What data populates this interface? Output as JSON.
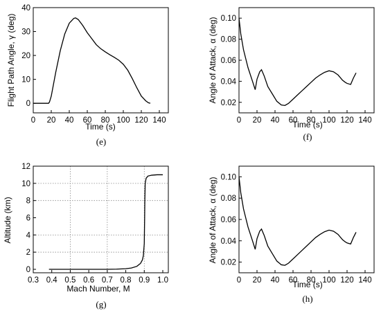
{
  "chart_data": [
    {
      "id": "e",
      "type": "line",
      "caption": "(e)",
      "xlabel": "Time (s)",
      "ylabel": "Flight Path Angle, γ (deg)",
      "xlim": [
        0,
        150
      ],
      "ylim": [
        -4,
        40
      ],
      "xticks": [
        0,
        20,
        40,
        60,
        80,
        100,
        120,
        140
      ],
      "yticks": [
        0,
        10,
        20,
        30,
        40
      ],
      "ytick_labels": [
        "0",
        "10",
        "20",
        "30",
        "40"
      ],
      "grid": false,
      "x": [
        0,
        10,
        17,
        18,
        20,
        25,
        30,
        35,
        40,
        45,
        47,
        50,
        55,
        60,
        65,
        70,
        75,
        80,
        85,
        90,
        95,
        100,
        105,
        110,
        115,
        120,
        125,
        128,
        130
      ],
      "y": [
        0,
        0,
        0,
        0.5,
        3,
        13,
        22,
        29,
        33.5,
        35.5,
        35.7,
        35,
        32.5,
        29.5,
        27,
        24.5,
        22.8,
        21.5,
        20.3,
        19.2,
        18,
        16.3,
        13.8,
        10.3,
        6.5,
        3,
        1,
        0.2,
        0
      ]
    },
    {
      "id": "f",
      "type": "line",
      "caption": "(f)",
      "xlabel": "Time (s)",
      "ylabel": "Angle of Attack, α (deg)",
      "xlim": [
        0,
        150
      ],
      "ylim": [
        0.01,
        0.11
      ],
      "xticks": [
        0,
        20,
        40,
        60,
        80,
        100,
        120,
        140
      ],
      "yticks": [
        0.02,
        0.04,
        0.06,
        0.08,
        0.1
      ],
      "ytick_labels": [
        "0.02",
        "0.04",
        "0.06",
        "0.08",
        "0.10"
      ],
      "grid": false,
      "x": [
        0,
        2,
        5,
        10,
        15,
        18,
        20,
        23,
        25,
        28,
        32,
        37,
        42,
        47,
        51,
        55,
        60,
        65,
        70,
        75,
        80,
        85,
        90,
        95,
        100,
        105,
        110,
        115,
        118,
        120,
        124,
        127,
        130
      ],
      "y": [
        0.1,
        0.085,
        0.07,
        0.053,
        0.04,
        0.032,
        0.042,
        0.049,
        0.051,
        0.045,
        0.035,
        0.028,
        0.021,
        0.0175,
        0.017,
        0.019,
        0.023,
        0.027,
        0.031,
        0.035,
        0.039,
        0.043,
        0.046,
        0.0485,
        0.05,
        0.049,
        0.046,
        0.041,
        0.039,
        0.038,
        0.037,
        0.043,
        0.048
      ]
    },
    {
      "id": "g",
      "type": "line",
      "caption": "(g)",
      "xlabel": "Mach Number, M",
      "ylabel": "Altitude (km)",
      "xlim": [
        0.3,
        1.03
      ],
      "ylim": [
        -0.4,
        12
      ],
      "xticks": [
        0.3,
        0.4,
        0.5,
        0.6,
        0.7,
        0.8,
        0.9,
        1.0
      ],
      "xtick_labels": [
        "0.3",
        "0.4",
        "0.5",
        "0.6",
        "0.7",
        "0.8",
        "0.9",
        "1.0"
      ],
      "yticks": [
        0,
        2,
        4,
        6,
        8,
        10,
        12
      ],
      "ytick_labels": [
        "0",
        "2",
        "4",
        "6",
        "8",
        "10",
        "12"
      ],
      "grid": true,
      "gridlines_x": [
        0.5,
        0.7,
        0.9
      ],
      "gridlines_y": [
        2,
        4,
        8,
        10
      ],
      "x": [
        0.385,
        0.5,
        0.6,
        0.7,
        0.75,
        0.8,
        0.83,
        0.86,
        0.88,
        0.89,
        0.895,
        0.9,
        0.902,
        0.903,
        0.905,
        0.91,
        0.92,
        0.94,
        0.97,
        1.0
      ],
      "y": [
        0,
        0,
        0,
        0,
        0.02,
        0.07,
        0.15,
        0.35,
        0.7,
        1.1,
        1.6,
        3,
        6,
        8,
        10,
        10.6,
        10.85,
        10.95,
        11,
        11
      ]
    },
    {
      "id": "h",
      "type": "line",
      "caption": "(h)",
      "xlabel": "Time (s)",
      "ylabel": "Angle of Attack, α (deg)",
      "xlim": [
        0,
        150
      ],
      "ylim": [
        0.01,
        0.11
      ],
      "xticks": [
        0,
        20,
        40,
        60,
        80,
        100,
        120,
        140
      ],
      "yticks": [
        0.02,
        0.04,
        0.06,
        0.08,
        0.1
      ],
      "ytick_labels": [
        "0.02",
        "0.04",
        "0.06",
        "0.08",
        "0.10"
      ],
      "grid": false,
      "x": [
        0,
        2,
        5,
        10,
        15,
        18,
        20,
        23,
        25,
        28,
        32,
        37,
        42,
        47,
        51,
        55,
        60,
        65,
        70,
        75,
        80,
        85,
        90,
        95,
        100,
        105,
        110,
        115,
        118,
        120,
        124,
        127,
        130
      ],
      "y": [
        0.1,
        0.085,
        0.07,
        0.053,
        0.04,
        0.032,
        0.042,
        0.049,
        0.051,
        0.045,
        0.035,
        0.028,
        0.021,
        0.0175,
        0.017,
        0.019,
        0.023,
        0.027,
        0.031,
        0.035,
        0.039,
        0.043,
        0.046,
        0.0485,
        0.05,
        0.049,
        0.046,
        0.041,
        0.039,
        0.038,
        0.037,
        0.043,
        0.048
      ]
    }
  ]
}
